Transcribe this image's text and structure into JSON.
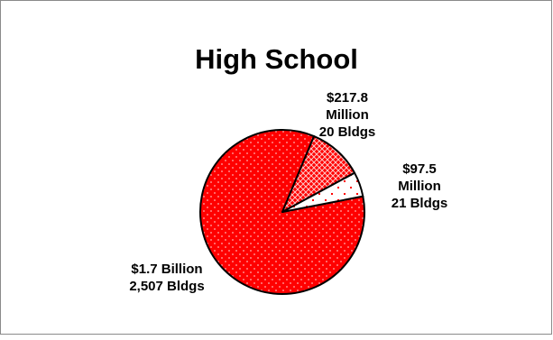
{
  "chart_data": {
    "type": "pie",
    "title": "High School",
    "slices": [
      {
        "value": 1.7,
        "unit": "Billion",
        "line1": "$1.7 Billion",
        "line2": "2,507 Bldgs",
        "fill": "#ff0000",
        "pattern": "dots"
      },
      {
        "value": 0.2178,
        "unit": "Billion",
        "line1": "$217.8",
        "line2": "Million",
        "line3": "20 Bldgs",
        "fill": "#ff0000",
        "pattern": "crosshatch"
      },
      {
        "value": 0.0975,
        "unit": "Billion",
        "line1": "$97.5",
        "line2": "Million",
        "line3": "21 Bldgs",
        "fill": "#ffffff",
        "pattern": "sparse-red-dots"
      }
    ]
  }
}
